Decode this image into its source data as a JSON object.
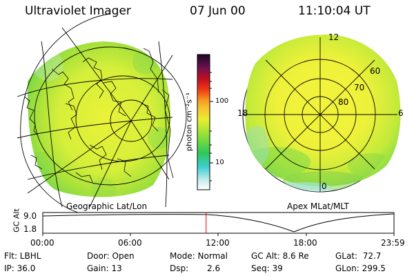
{
  "header": {
    "instrument": "Ultraviolet Imager",
    "date": "07 Jun 00",
    "time": "11:10:04 UT"
  },
  "colorbar": {
    "unit_label": "photon cm⁻²s⁻¹",
    "tick_100": "100",
    "tick_10": "10"
  },
  "left_panel": {
    "caption": "Geographic Lat/Lon"
  },
  "right_panel": {
    "caption": "Apex MLat/MLT",
    "mlt_12": "12",
    "mlt_18": "18",
    "mlt_6": "6",
    "mlt_0": "0",
    "lat_60": "60",
    "lat_70": "70",
    "lat_80": "80"
  },
  "timeline": {
    "axis_label": "GC Alt",
    "y_top": "9.0",
    "y_bottom": "1.8",
    "ticks": [
      "00:00",
      "06:00",
      "12:00",
      "18:00",
      "23:59"
    ],
    "current_time_fraction": 0.465
  },
  "status": {
    "filter": "Flt: LBHL",
    "ip": "IP: 36.0",
    "door": "Door: Open",
    "gain": "Gain: 13",
    "mode": "Mode: Normal",
    "dsp_label": "Dsp:",
    "dsp_value": "2.6",
    "gc_alt": "GC Alt: 8.6 Re",
    "seq": "Seq: 39",
    "glat": "GLat:  72.7",
    "glon": "GLon: 299.5"
  }
}
